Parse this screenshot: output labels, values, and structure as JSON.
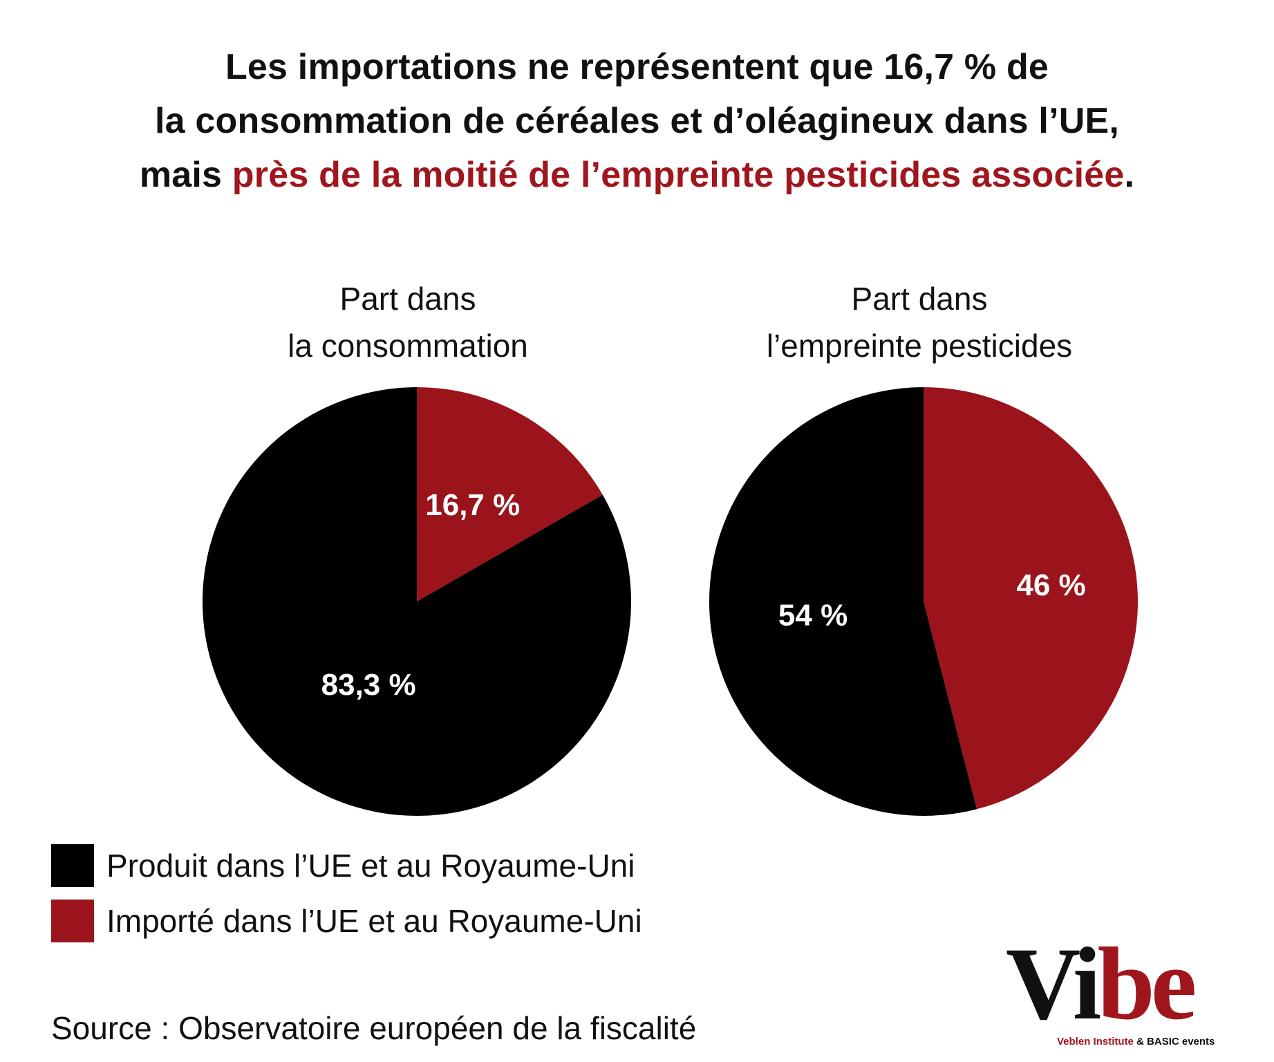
{
  "headline": {
    "line1": "Les importations ne représentent que 16,7 % de",
    "line2": "la consommation de céréales et d’oléagineux dans l’UE,",
    "line3_prefix": "mais ",
    "line3_highlight": "près de la moitié de l’empreinte pesticides associée",
    "line3_suffix": "."
  },
  "colors": {
    "domestic": "#000000",
    "imported": "#9b141c",
    "accent": "#a0161d"
  },
  "chart_data": [
    {
      "type": "pie",
      "title_line1": "Part dans",
      "title_line2": "la consommation",
      "slices": [
        {
          "name": "Importé dans l’UE et au Royaume-Uni",
          "value": 16.7,
          "label": "16,7 %",
          "color": "#9b141c"
        },
        {
          "name": "Produit dans l’UE et au Royaume-Uni",
          "value": 83.3,
          "label": "83,3 %",
          "color": "#000000"
        }
      ]
    },
    {
      "type": "pie",
      "title_line1": "Part dans",
      "title_line2": "l’empreinte pesticides",
      "slices": [
        {
          "name": "Importé dans l’UE et au Royaume-Uni",
          "value": 46,
          "label": "46 %",
          "color": "#9b141c"
        },
        {
          "name": "Produit dans l’UE et au Royaume-Uni",
          "value": 54,
          "label": "54 %",
          "color": "#000000"
        }
      ]
    }
  ],
  "legend": [
    {
      "label": "Produit dans l’UE et au Royaume-Uni",
      "color": "#000000"
    },
    {
      "label": "Importé dans l’UE et au Royaume-Uni",
      "color": "#9b141c"
    }
  ],
  "source": "Source : Observatoire européen de la fiscalité",
  "logo": {
    "word_dark": "Vi",
    "word_red": "be",
    "sub_red": "Veblen Institute",
    "sub_dark": " & BASIC events"
  }
}
